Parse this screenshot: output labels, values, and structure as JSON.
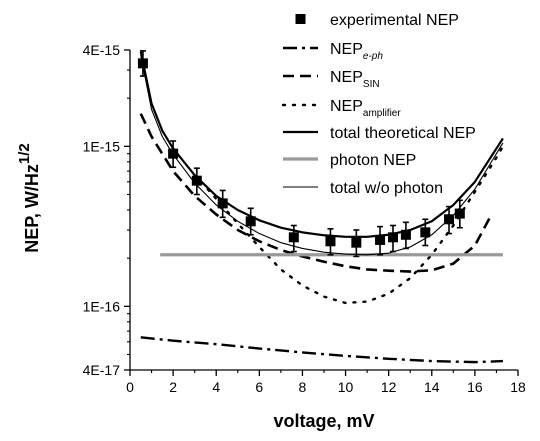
{
  "chart_data": {
    "type": "scatter",
    "xlabel": "voltage, mV",
    "ylabel": {
      "main": "NEP, W/Hz",
      "sup": "1/2"
    },
    "x_range": [
      0,
      18
    ],
    "y_range": [
      4e-17,
      4e-15
    ],
    "y_scale": "log",
    "x_ticks": [
      0,
      2,
      4,
      6,
      8,
      10,
      12,
      14,
      16,
      18
    ],
    "x_tick_labels": [
      "0",
      "2",
      "4",
      "6",
      "8",
      "10",
      "12",
      "14",
      "16",
      "18"
    ],
    "y_ticks": [
      4e-17,
      1e-16,
      1e-15,
      4e-15
    ],
    "y_tick_labels": [
      "4E-17",
      "1E-16",
      "1E-15",
      "4E-15"
    ],
    "grid": false,
    "legend_position": "top-right",
    "colors": {
      "black": "#000000",
      "gray": "#999999"
    },
    "series": [
      {
        "name": "experimental NEP",
        "style": "square-markers-with-error-bars",
        "points": [
          {
            "x": 0.6,
            "y": 3.3e-15,
            "lo": 2.75e-15,
            "hi": 3.95e-15
          },
          {
            "x": 2.0,
            "y": 9e-16,
            "lo": 7.4e-16,
            "hi": 1.08e-15
          },
          {
            "x": 3.1,
            "y": 6.1e-16,
            "lo": 5e-16,
            "hi": 7.3e-16
          },
          {
            "x": 4.3,
            "y": 4.4e-16,
            "lo": 3.6e-16,
            "hi": 5.3e-16
          },
          {
            "x": 5.6,
            "y": 3.4e-16,
            "lo": 2.8e-16,
            "hi": 4.1e-16
          },
          {
            "x": 7.6,
            "y": 2.7e-16,
            "lo": 2.2e-16,
            "hi": 3.2e-16
          },
          {
            "x": 9.3,
            "y": 2.55e-16,
            "lo": 2.1e-16,
            "hi": 3.05e-16
          },
          {
            "x": 10.5,
            "y": 2.5e-16,
            "lo": 2.05e-16,
            "hi": 3e-16
          },
          {
            "x": 11.6,
            "y": 2.6e-16,
            "lo": 2.1e-16,
            "hi": 3.15e-16
          },
          {
            "x": 12.2,
            "y": 2.7e-16,
            "lo": 2.2e-16,
            "hi": 3.2e-16
          },
          {
            "x": 12.8,
            "y": 2.8e-16,
            "lo": 2.3e-16,
            "hi": 3.35e-16
          },
          {
            "x": 13.7,
            "y": 2.9e-16,
            "lo": 2.4e-16,
            "hi": 3.5e-16
          },
          {
            "x": 14.8,
            "y": 3.5e-16,
            "lo": 2.85e-16,
            "hi": 4.2e-16
          },
          {
            "x": 15.3,
            "y": 3.8e-16,
            "lo": 3.1e-16,
            "hi": 4.6e-16
          }
        ]
      },
      {
        "name": "NEP",
        "name_subscript": "e-ph",
        "style": "dash-dot",
        "x": [
          0.5,
          2,
          4,
          6,
          8,
          10,
          12,
          14,
          16,
          17.3
        ],
        "y": [
          6.4e-17,
          6.1e-17,
          5.8e-17,
          5.45e-17,
          5.15e-17,
          4.9e-17,
          4.7e-17,
          4.55e-17,
          4.48e-17,
          4.55e-17
        ]
      },
      {
        "name": "NEP",
        "name_subscript": "SIN",
        "style": "dashed",
        "x": [
          0.5,
          1,
          2,
          3,
          4,
          5,
          6,
          7,
          8,
          9,
          10,
          11,
          12,
          13,
          14,
          15,
          16,
          16.7
        ],
        "y": [
          1.6e-15,
          1.15e-15,
          7e-16,
          4.9e-16,
          3.75e-16,
          3e-16,
          2.55e-16,
          2.25e-16,
          2.05e-16,
          1.9e-16,
          1.78e-16,
          1.7e-16,
          1.67e-16,
          1.65e-16,
          1.68e-16,
          1.85e-16,
          2.4e-16,
          3.6e-16
        ]
      },
      {
        "name": "NEP",
        "name_subscript": "amplifier",
        "style": "dotted",
        "x": [
          3.3,
          4,
          5,
          6,
          7,
          8,
          9,
          10,
          11,
          12,
          13,
          14,
          15,
          16,
          17,
          17.3
        ],
        "y": [
          6e-16,
          4.7e-16,
          3.3e-16,
          2.35e-16,
          1.7e-16,
          1.35e-16,
          1.15e-16,
          1.05e-16,
          1.07e-16,
          1.2e-16,
          1.5e-16,
          2.1e-16,
          3.2e-16,
          5.2e-16,
          8.5e-16,
          1e-15
        ]
      },
      {
        "name": "total theoretical NEP",
        "style": "solid-thick",
        "x": [
          0.5,
          1,
          1.5,
          2,
          3,
          4,
          5,
          6,
          7,
          8,
          9,
          10,
          11,
          12,
          13,
          14,
          15,
          16,
          17.3
        ],
        "y": [
          3.9e-15,
          1.85e-15,
          1.25e-15,
          9.7e-16,
          6.6e-16,
          4.9e-16,
          4e-16,
          3.45e-16,
          3.1e-16,
          2.9e-16,
          2.78e-16,
          2.72e-16,
          2.72e-16,
          2.8e-16,
          3e-16,
          3.4e-16,
          4.3e-16,
          6e-16,
          1.12e-15
        ]
      },
      {
        "name": "photon NEP",
        "style": "solid-gray-thick",
        "x": [
          1.4,
          17.3
        ],
        "y": [
          2.1e-16,
          2.1e-16
        ]
      },
      {
        "name": "total w/o photon",
        "style": "solid-thin",
        "x": [
          0.5,
          1,
          1.5,
          2,
          3,
          4,
          5,
          6,
          7,
          8,
          9,
          10,
          11,
          12,
          13,
          14,
          15,
          16,
          17.3
        ],
        "y": [
          3.7e-15,
          1.7e-15,
          1.15e-15,
          8.9e-16,
          5.9e-16,
          4.3e-16,
          3.4e-16,
          2.85e-16,
          2.5e-16,
          2.3e-16,
          2.18e-16,
          2.12e-16,
          2.1e-16,
          2.15e-16,
          2.35e-16,
          2.8e-16,
          3.7e-16,
          5.4e-16,
          1.05e-15
        ]
      }
    ]
  }
}
